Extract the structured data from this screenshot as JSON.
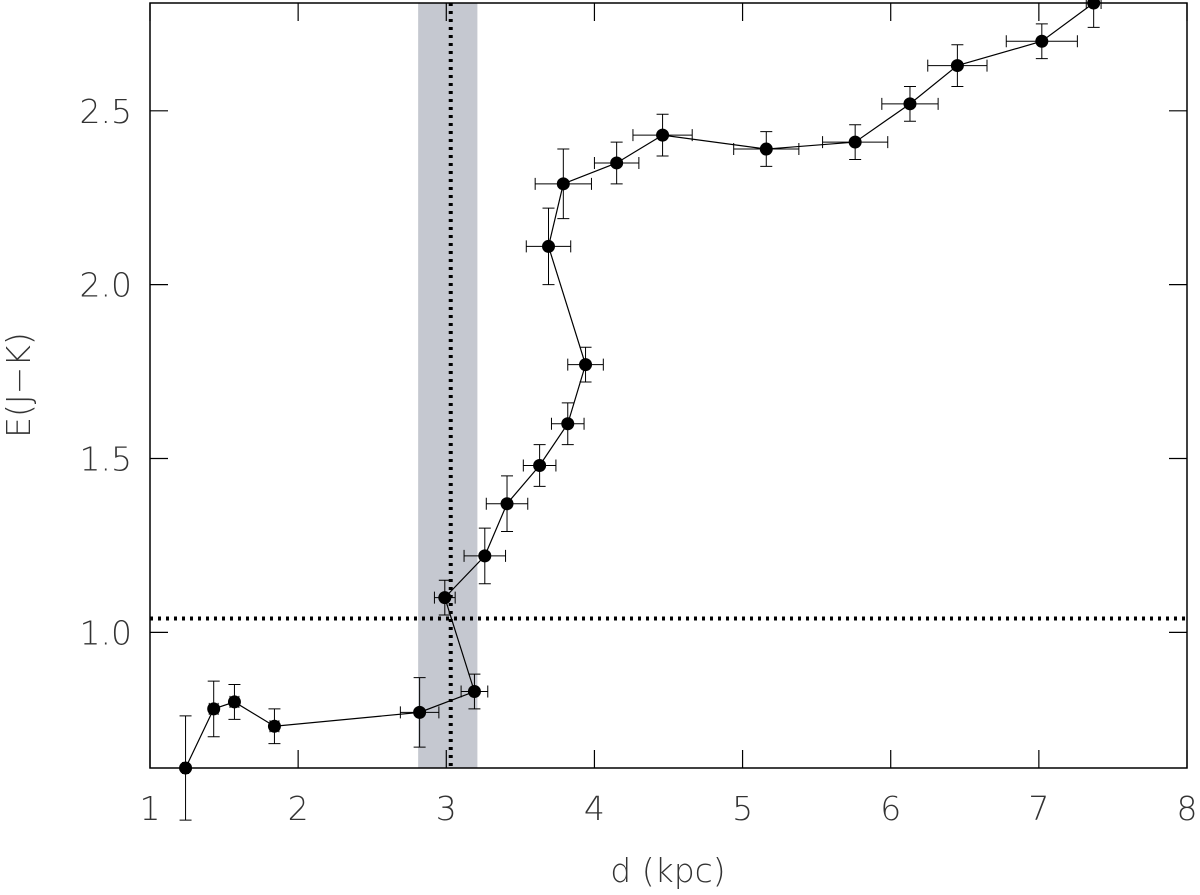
{
  "chart_data": {
    "type": "scatter",
    "xlabel": "d (kpc)",
    "ylabel": "E(J−K)",
    "xlim": [
      1,
      8
    ],
    "ylim": [
      0.61,
      2.81
    ],
    "xticks": [
      1,
      2,
      3,
      4,
      5,
      6,
      7,
      8
    ],
    "yticks": [
      {
        "value": 1.0,
        "label": "1.0"
      },
      {
        "value": 1.5,
        "label": "1.5"
      },
      {
        "value": 2.0,
        "label": "2.0"
      },
      {
        "value": 2.5,
        "label": "2.5"
      }
    ],
    "series": [
      {
        "color": "#000000",
        "x": [
          1.24,
          1.43,
          1.57,
          1.84,
          2.82,
          3.19,
          2.99,
          3.26,
          3.41,
          3.63,
          3.82,
          3.94,
          3.69,
          3.79,
          4.15,
          4.46,
          5.16,
          5.76,
          6.13,
          6.45,
          7.02,
          7.37
        ],
        "values": [
          0.61,
          0.78,
          0.8,
          0.73,
          0.77,
          0.83,
          1.1,
          1.22,
          1.37,
          1.48,
          1.6,
          1.77,
          2.11,
          2.29,
          2.35,
          2.43,
          2.39,
          2.41,
          2.52,
          2.63,
          2.7,
          2.81
        ],
        "xerr": [
          0.02,
          0.03,
          0.03,
          0.03,
          0.13,
          0.09,
          0.07,
          0.14,
          0.14,
          0.11,
          0.11,
          0.12,
          0.15,
          0.19,
          0.15,
          0.2,
          0.22,
          0.22,
          0.19,
          0.2,
          0.24,
          0.05
        ],
        "yerr": [
          0.15,
          0.08,
          0.05,
          0.05,
          0.1,
          0.05,
          0.05,
          0.08,
          0.08,
          0.06,
          0.06,
          0.05,
          0.11,
          0.1,
          0.06,
          0.06,
          0.05,
          0.05,
          0.05,
          0.06,
          0.05,
          0.07
        ]
      }
    ],
    "shade_x": [
      2.81,
      3.21
    ],
    "shade_color": "#c5c8d0",
    "vline": 3.03,
    "hline": 1.04
  }
}
